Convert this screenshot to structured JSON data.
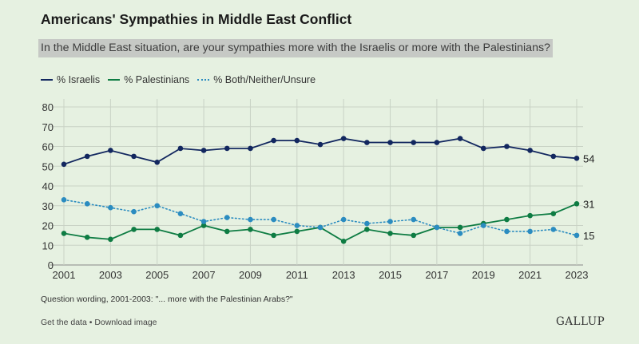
{
  "chart_data": {
    "type": "line",
    "title": "Americans' Sympathies in Middle East Conflict",
    "subtitle": "In the Middle East situation, are your sympathies more with the Israelis or more with the Palestinians?",
    "x": [
      2001,
      2002,
      2003,
      2004,
      2005,
      2006,
      2007,
      2008,
      2009,
      2010,
      2011,
      2012,
      2013,
      2014,
      2015,
      2016,
      2017,
      2018,
      2019,
      2020,
      2021,
      2022,
      2023
    ],
    "x_tick_labels": [
      "2001",
      "2003",
      "2005",
      "2007",
      "2009",
      "2011",
      "2013",
      "2015",
      "2017",
      "2019",
      "2021",
      "2023"
    ],
    "y_tick_labels": [
      "0",
      "10",
      "20",
      "30",
      "40",
      "50",
      "60",
      "70",
      "80"
    ],
    "ylim": [
      0,
      80
    ],
    "grid": true,
    "legend_position": "top-left",
    "series": [
      {
        "name": "% Israelis",
        "color": "#12275f",
        "style": "solid",
        "values": [
          51,
          55,
          58,
          55,
          52,
          59,
          58,
          59,
          59,
          63,
          63,
          61,
          64,
          62,
          62,
          62,
          62,
          64,
          59,
          60,
          58,
          55,
          54
        ],
        "end_label": "54"
      },
      {
        "name": "% Palestinians",
        "color": "#0e7c43",
        "style": "solid",
        "values": [
          16,
          14,
          13,
          18,
          18,
          15,
          20,
          17,
          18,
          15,
          17,
          19,
          12,
          18,
          16,
          15,
          19,
          19,
          21,
          23,
          25,
          26,
          31
        ],
        "end_label": "31"
      },
      {
        "name": "% Both/Neither/Unsure",
        "color": "#2b8cc0",
        "style": "dotted",
        "values": [
          33,
          31,
          29,
          27,
          30,
          26,
          22,
          24,
          23,
          23,
          20,
          19,
          23,
          21,
          22,
          23,
          19,
          16,
          20,
          17,
          17,
          18,
          15
        ],
        "end_label": "15"
      }
    ]
  },
  "note": "Question wording, 2001-2003: \"... more with the Palestinian Arabs?\"",
  "footer": {
    "get_data": "Get the data",
    "separator": " • ",
    "download": "Download image"
  },
  "brand": "GALLUP"
}
